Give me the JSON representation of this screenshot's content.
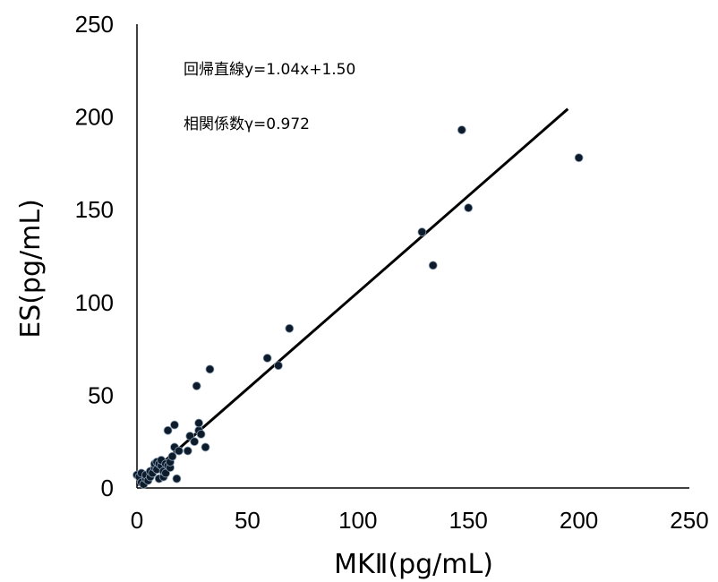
{
  "chart_data": {
    "type": "scatter",
    "xlabel": "MKⅡ(pg/mL)",
    "ylabel": "ES(pg/mL)",
    "xlim": [
      0,
      250
    ],
    "ylim": [
      0,
      250
    ],
    "xticks": [
      "0",
      "50",
      "100",
      "150",
      "200",
      "250"
    ],
    "yticks": [
      "0",
      "50",
      "100",
      "150",
      "200",
      "250"
    ],
    "grid": false,
    "annotations": [
      "回帰直線y=1.04x+1.50",
      "相関係数γ=0.972"
    ],
    "trendline": {
      "slope": 1.04,
      "intercept": 1.5,
      "x_range": [
        0,
        195
      ]
    },
    "marker_color": "#0d1b2a",
    "series": [
      {
        "x": [
          0,
          1,
          2,
          2,
          3,
          4,
          4,
          5,
          6,
          6,
          7,
          8,
          8,
          9,
          9,
          10,
          10,
          11,
          11,
          12,
          12,
          13,
          13,
          14,
          14,
          15,
          15,
          16,
          17,
          17,
          18,
          19,
          23,
          24,
          26,
          27,
          28,
          28,
          29,
          31,
          33,
          59,
          64,
          69,
          129,
          134,
          147,
          150,
          200
        ],
        "y": [
          7,
          6,
          3,
          8,
          2,
          5,
          7,
          4,
          6,
          9,
          8,
          11,
          13,
          10,
          14,
          13,
          5,
          12,
          15,
          6,
          9,
          8,
          13,
          31,
          12,
          11,
          14,
          17,
          22,
          34,
          5,
          20,
          20,
          28,
          25,
          55,
          31,
          35,
          29,
          22,
          64,
          70,
          66,
          86,
          138,
          120,
          193,
          151,
          178
        ]
      }
    ]
  }
}
